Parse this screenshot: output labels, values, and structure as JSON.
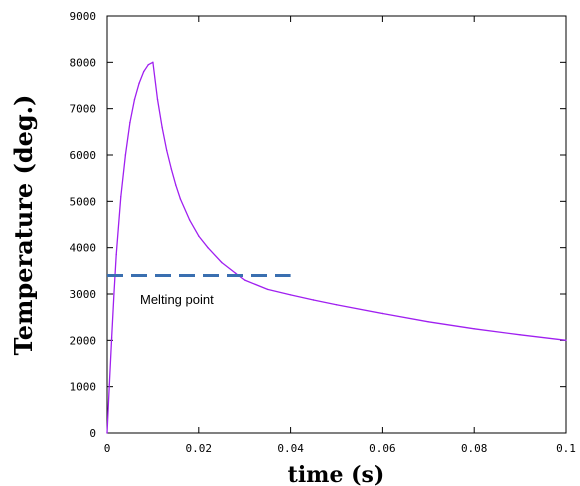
{
  "chart_data": {
    "type": "line",
    "title": "",
    "xlabel": "time (s)",
    "ylabel": "Temperature (deg.)",
    "xlim": [
      0,
      0.1
    ],
    "ylim": [
      0,
      9000
    ],
    "x_ticks": [
      0,
      0.02,
      0.04,
      0.06,
      0.08,
      0.1
    ],
    "x_tick_labels": [
      "0",
      "0.02",
      "0.04",
      "0.06",
      "0.08",
      "0.1"
    ],
    "y_ticks": [
      0,
      1000,
      2000,
      3000,
      4000,
      5000,
      6000,
      7000,
      8000,
      9000
    ],
    "y_tick_labels": [
      "0",
      "1000",
      "2000",
      "3000",
      "4000",
      "5000",
      "6000",
      "7000",
      "8000",
      "9000"
    ],
    "grid": false,
    "series": [
      {
        "color": "#a020f0",
        "style": "dotted-line",
        "x": [
          0,
          0.0005,
          0.001,
          0.0015,
          0.002,
          0.003,
          0.004,
          0.005,
          0.006,
          0.007,
          0.008,
          0.009,
          0.01,
          0.011,
          0.012,
          0.013,
          0.014,
          0.015,
          0.016,
          0.018,
          0.02,
          0.022,
          0.025,
          0.028,
          0.03,
          0.035,
          0.04,
          0.045,
          0.05,
          0.06,
          0.07,
          0.08,
          0.09,
          0.1
        ],
        "y": [
          0,
          1050,
          2050,
          3000,
          3850,
          5100,
          6000,
          6700,
          7200,
          7550,
          7800,
          7950,
          8000,
          7200,
          6600,
          6100,
          5700,
          5350,
          5050,
          4600,
          4250,
          4000,
          3680,
          3450,
          3300,
          3100,
          2980,
          2870,
          2770,
          2580,
          2400,
          2250,
          2120,
          2000
        ]
      }
    ],
    "annotations": [
      {
        "type": "hline",
        "y": 3400,
        "x_range": [
          0,
          0.04
        ],
        "color": "#3a6fb0",
        "style": "dashed",
        "label": "Melting point"
      }
    ]
  }
}
